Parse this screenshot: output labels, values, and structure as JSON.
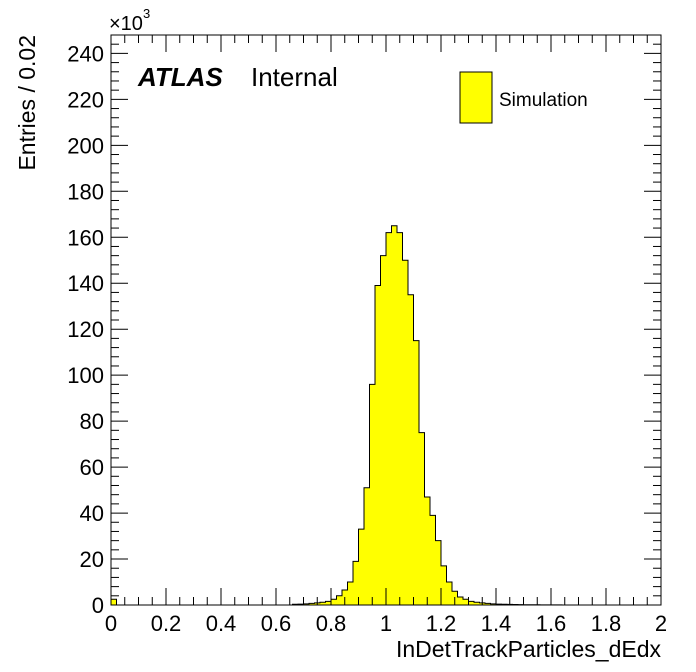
{
  "chart_data": {
    "type": "bar",
    "xlabel": "InDetTrackParticles_dEdx",
    "ylabel": "Entries / 0.02",
    "y_multiplier_label": "×10",
    "y_multiplier_exponent": "3",
    "xlim": [
      0,
      2
    ],
    "ylim": [
      0,
      248
    ],
    "bin_width": 0.02,
    "x_ticks": [
      "0",
      "0.2",
      "0.4",
      "0.6",
      "0.8",
      "1",
      "1.2",
      "1.4",
      "1.6",
      "1.8",
      "2"
    ],
    "y_ticks": [
      "0",
      "20",
      "40",
      "60",
      "80",
      "100",
      "120",
      "140",
      "160",
      "180",
      "200",
      "220",
      "240"
    ],
    "bin_edges_x": [
      0.66,
      0.68,
      0.7,
      0.72,
      0.74,
      0.76,
      0.78,
      0.8,
      0.82,
      0.84,
      0.86,
      0.88,
      0.9,
      0.92,
      0.94,
      0.96,
      0.98,
      1.0,
      1.02,
      1.04,
      1.06,
      1.08,
      1.1,
      1.12,
      1.14,
      1.16,
      1.18,
      1.2,
      1.22,
      1.24,
      1.26,
      1.28,
      1.3,
      1.32,
      1.34,
      1.36,
      1.38,
      1.4,
      1.42,
      1.44,
      1.46,
      1.48,
      1.5,
      1.52,
      1.54,
      1.56,
      1.58,
      1.6,
      1.62,
      1.64
    ],
    "values": [
      0.3,
      0.4,
      0.5,
      0.7,
      0.9,
      1.2,
      1.6,
      2.5,
      4.0,
      6.5,
      10,
      19,
      33,
      51,
      96,
      139,
      152,
      162,
      165,
      162,
      150,
      135,
      115,
      75,
      47,
      39,
      28,
      17,
      10,
      6,
      3.5,
      2.5,
      1.6,
      1.2,
      0.9,
      0.7,
      0.5,
      0.4,
      0.3,
      0.25,
      0.2,
      0.15,
      0.12,
      0.1,
      0.1,
      0.08,
      0.06,
      0.05,
      0.05
    ],
    "underflow_bin": {
      "x0": 0.0,
      "x1": 0.02,
      "value": 2.5
    },
    "legend": {
      "entries": [
        "Simulation"
      ],
      "position": "top-right"
    },
    "annotations": {
      "atlas": "ATLAS",
      "status": "Internal"
    },
    "colors": {
      "fill": "#ffff00",
      "line": "#000000"
    }
  }
}
